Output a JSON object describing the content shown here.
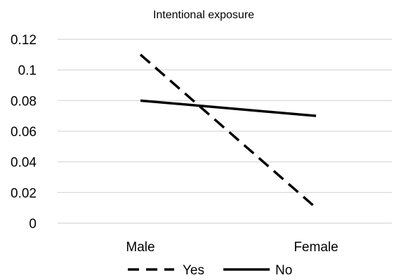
{
  "chart_data": {
    "type": "line",
    "title": "Intentional exposure",
    "xlabel": "",
    "ylabel": "",
    "categories": [
      "Male",
      "Female"
    ],
    "ylim": [
      0,
      0.12
    ],
    "yticks": [
      "0",
      "0.02",
      "0.04",
      "0.06",
      "0.08",
      "0.1",
      "0.12"
    ],
    "grid": true,
    "legend_position": "bottom",
    "series": [
      {
        "name": "Yes",
        "values": [
          0.11,
          0.01
        ],
        "style": "dashed",
        "color": "#000000"
      },
      {
        "name": "No",
        "values": [
          0.08,
          0.07
        ],
        "style": "solid",
        "color": "#000000"
      }
    ]
  }
}
